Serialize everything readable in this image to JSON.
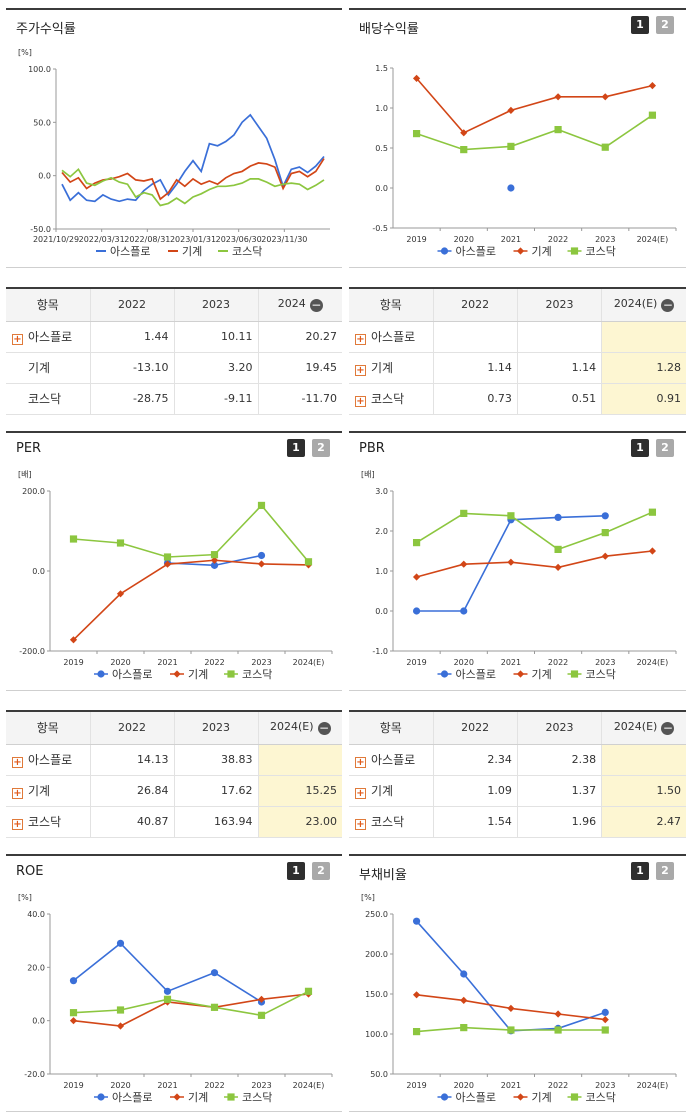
{
  "colors": {
    "asplo": "#3a6fd8",
    "machine": "#d24617",
    "kosdaq": "#8cc63f"
  },
  "legend": [
    "아스플로",
    "기계",
    "코스닥"
  ],
  "charts": {
    "stock": {
      "title": "주가수익률",
      "unit": "[%]",
      "chart_data": {
        "type": "line",
        "title": "주가수익률",
        "ylabel": "[%]",
        "ylim": [
          -50,
          100
        ],
        "yticks": [
          "100.0",
          "50.0",
          "0.0",
          "-50.0"
        ],
        "xticks": [
          "2021/10/29",
          "2022/03/31",
          "2022/08/31",
          "2023/01/31",
          "2023/06/30",
          "2023/11/30"
        ],
        "series": [
          {
            "name": "아스플로",
            "values": [
              -8,
              -23,
              -16,
              -23,
              -24,
              -18,
              -22,
              -24,
              -22,
              -23,
              -14,
              -8,
              -4,
              -18,
              -8,
              4,
              14,
              4,
              30,
              28,
              32,
              38,
              50,
              57,
              46,
              35,
              15,
              -10,
              6,
              8,
              3,
              9,
              18
            ]
          },
          {
            "name": "기계",
            "values": [
              3,
              -6,
              -2,
              -12,
              -7,
              -4,
              -3,
              -1,
              2,
              -4,
              -5,
              -3,
              -22,
              -16,
              -4,
              -10,
              -3,
              -8,
              -5,
              -8,
              -2,
              2,
              4,
              9,
              12,
              11,
              8,
              -12,
              2,
              4,
              -1,
              4,
              16
            ]
          },
          {
            "name": "코스닥",
            "values": [
              5,
              -1,
              6,
              -7,
              -9,
              -5,
              -2,
              -6,
              -8,
              -20,
              -16,
              -18,
              -28,
              -26,
              -21,
              -26,
              -20,
              -17,
              -13,
              -10,
              -10,
              -9,
              -7,
              -3,
              -3,
              -6,
              -10,
              -8,
              -7,
              -8,
              -13,
              -9,
              -4
            ]
          }
        ]
      }
    },
    "dividend": {
      "title": "배당수익률",
      "chart_data": {
        "type": "line",
        "title": "배당수익률",
        "ylim": [
          -0.5,
          1.5
        ],
        "yticks": [
          "1.5",
          "1.0",
          "0.5",
          "0.0",
          "-0.5"
        ],
        "categories": [
          "2019",
          "2020",
          "2021",
          "2022",
          "2023",
          "2024(E)"
        ],
        "series": [
          {
            "name": "아스플로",
            "values": [
              null,
              null,
              0.0,
              null,
              null,
              null
            ]
          },
          {
            "name": "기계",
            "values": [
              1.37,
              0.69,
              0.97,
              1.14,
              1.14,
              1.28
            ]
          },
          {
            "name": "코스닥",
            "values": [
              0.68,
              0.48,
              0.52,
              0.73,
              0.51,
              0.91
            ]
          }
        ]
      }
    },
    "per": {
      "title": "PER",
      "unit": "[배]",
      "chart_data": {
        "type": "line",
        "title": "PER",
        "ylabel": "[배]",
        "ylim": [
          -200,
          200
        ],
        "yticks": [
          "200.0",
          "0.0",
          "-200.0"
        ],
        "categories": [
          "2019",
          "2020",
          "2021",
          "2022",
          "2023",
          "2024(E)"
        ],
        "series": [
          {
            "name": "아스플로",
            "values": [
              null,
              null,
              20,
              14.13,
              38.83,
              null
            ]
          },
          {
            "name": "기계",
            "values": [
              -172,
              -57,
              17,
              26.84,
              17.62,
              15.25
            ]
          },
          {
            "name": "코스닥",
            "values": [
              80,
              70,
              35,
              40.87,
              163.94,
              23.0
            ]
          }
        ]
      }
    },
    "pbr": {
      "title": "PBR",
      "unit": "[배]",
      "chart_data": {
        "type": "line",
        "title": "PBR",
        "ylabel": "[배]",
        "ylim": [
          -1,
          3
        ],
        "yticks": [
          "3.0",
          "2.0",
          "1.0",
          "0.0",
          "-1.0"
        ],
        "categories": [
          "2019",
          "2020",
          "2021",
          "2022",
          "2023",
          "2024(E)"
        ],
        "series": [
          {
            "name": "아스플로",
            "values": [
              0.0,
              0.0,
              2.28,
              2.34,
              2.38,
              null
            ]
          },
          {
            "name": "기계",
            "values": [
              0.85,
              1.17,
              1.22,
              1.09,
              1.37,
              1.5
            ]
          },
          {
            "name": "코스닥",
            "values": [
              1.71,
              2.44,
              2.38,
              1.54,
              1.96,
              2.47
            ]
          }
        ]
      }
    },
    "roe": {
      "title": "ROE",
      "unit": "[%]",
      "chart_data": {
        "type": "line",
        "title": "ROE",
        "ylabel": "[%]",
        "ylim": [
          -20,
          40
        ],
        "yticks": [
          "40.0",
          "20.0",
          "0.0",
          "-20.0"
        ],
        "categories": [
          "2019",
          "2020",
          "2021",
          "2022",
          "2023",
          "2024(E)"
        ],
        "series": [
          {
            "name": "아스플로",
            "values": [
              15,
              29,
              11,
              18,
              7,
              null
            ]
          },
          {
            "name": "기계",
            "values": [
              0,
              -2,
              7,
              5,
              8,
              10
            ]
          },
          {
            "name": "코스닥",
            "values": [
              3,
              4,
              8,
              5,
              2,
              11
            ]
          }
        ]
      }
    },
    "debt": {
      "title": "부채비율",
      "unit": "[%]",
      "chart_data": {
        "type": "line",
        "title": "부채비율",
        "ylabel": "[%]",
        "ylim": [
          50,
          250
        ],
        "yticks": [
          "250.0",
          "200.0",
          "150.0",
          "100.0",
          "50.0"
        ],
        "categories": [
          "2019",
          "2020",
          "2021",
          "2022",
          "2023",
          "2024(E)"
        ],
        "series": [
          {
            "name": "아스플로",
            "values": [
              241,
              175,
              104,
              107,
              127,
              null
            ]
          },
          {
            "name": "기계",
            "values": [
              149,
              142,
              132,
              125,
              118,
              null
            ]
          },
          {
            "name": "코스닥",
            "values": [
              103,
              108,
              105,
              105,
              105,
              null
            ]
          }
        ]
      }
    }
  },
  "tables": {
    "stock": {
      "headers": [
        "항목",
        "2022",
        "2023",
        "2024"
      ],
      "rows": [
        {
          "label": "아스플로",
          "values": [
            "1.44",
            "10.11",
            "20.27"
          ]
        },
        {
          "label": "기계",
          "values": [
            "-13.10",
            "3.20",
            "19.45"
          ]
        },
        {
          "label": "코스닥",
          "values": [
            "-28.75",
            "-9.11",
            "-11.70"
          ]
        }
      ]
    },
    "dividend": {
      "headers": [
        "항목",
        "2022",
        "2023",
        "2024(E)"
      ],
      "rows": [
        {
          "label": "아스플로",
          "values": [
            "",
            "",
            ""
          ]
        },
        {
          "label": "기계",
          "values": [
            "1.14",
            "1.14",
            "1.28"
          ]
        },
        {
          "label": "코스닥",
          "values": [
            "0.73",
            "0.51",
            "0.91"
          ]
        }
      ]
    },
    "per": {
      "headers": [
        "항목",
        "2022",
        "2023",
        "2024(E)"
      ],
      "rows": [
        {
          "label": "아스플로",
          "values": [
            "14.13",
            "38.83",
            ""
          ]
        },
        {
          "label": "기계",
          "values": [
            "26.84",
            "17.62",
            "15.25"
          ]
        },
        {
          "label": "코스닥",
          "values": [
            "40.87",
            "163.94",
            "23.00"
          ]
        }
      ]
    },
    "pbr": {
      "headers": [
        "항목",
        "2022",
        "2023",
        "2024(E)"
      ],
      "rows": [
        {
          "label": "아스플로",
          "values": [
            "2.34",
            "2.38",
            ""
          ]
        },
        {
          "label": "기계",
          "values": [
            "1.09",
            "1.37",
            "1.50"
          ]
        },
        {
          "label": "코스닥",
          "values": [
            "1.54",
            "1.96",
            "2.47"
          ]
        }
      ]
    }
  },
  "page_buttons": [
    "1",
    "2"
  ]
}
